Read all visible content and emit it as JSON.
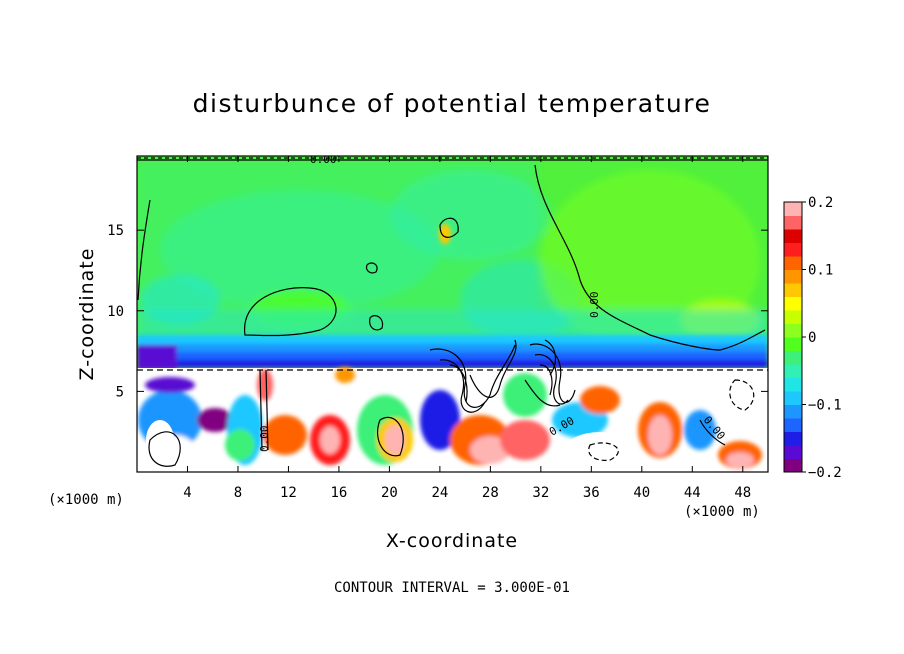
{
  "chart_data": {
    "type": "heatmap",
    "title": "disturbunce of potential temperature",
    "xlabel": "X-coordinate",
    "ylabel": "Z-coordinate",
    "x_unit": "(×1000 m)",
    "x_unit_right": "(×1000 m)",
    "xlim": [
      0,
      50
    ],
    "ylim": [
      0,
      19.6
    ],
    "xticks": [
      "4",
      "8",
      "12",
      "16",
      "20",
      "24",
      "28",
      "32",
      "36",
      "40",
      "44",
      "48"
    ],
    "yticks": [
      "5",
      "10",
      "15"
    ],
    "colorbar": {
      "range": [
        -0.2,
        0.2
      ],
      "tick_labels": [
        "0.2",
        "0.1",
        "0",
        "−0.1",
        "−0.2"
      ],
      "colors": [
        "#800080",
        "#5a0ad2",
        "#1e1ee6",
        "#1e64ff",
        "#1e96ff",
        "#1ec8ff",
        "#1ee6e6",
        "#32f0b4",
        "#3cf078",
        "#50ff1e",
        "#8cff1e",
        "#c8ff00",
        "#ffff00",
        "#ffc800",
        "#ff9600",
        "#ff6400",
        "#ff1e1e",
        "#dc0000",
        "#ff6464",
        "#ffb4b4"
      ]
    },
    "contour_labels": [
      "0.00",
      "0.00",
      "0.00",
      "0.00",
      "0.00"
    ],
    "contour_interval_text": "CONTOUR INTERVAL = 3.000E-01",
    "fields": [
      {
        "region": "upper layer z 8.5–19.6",
        "value": 0.0
      },
      {
        "region": "left upper band x 0–24, z 9–19",
        "value": -0.02
      },
      {
        "region": "right upper region x 40–50, z 8–18",
        "value": 0.03
      },
      {
        "region": "transition band z 7–8.5",
        "value": -0.12
      },
      {
        "region": "lower layer z 0–6.6",
        "value": "mixed -0.2 to 0.2"
      }
    ]
  }
}
